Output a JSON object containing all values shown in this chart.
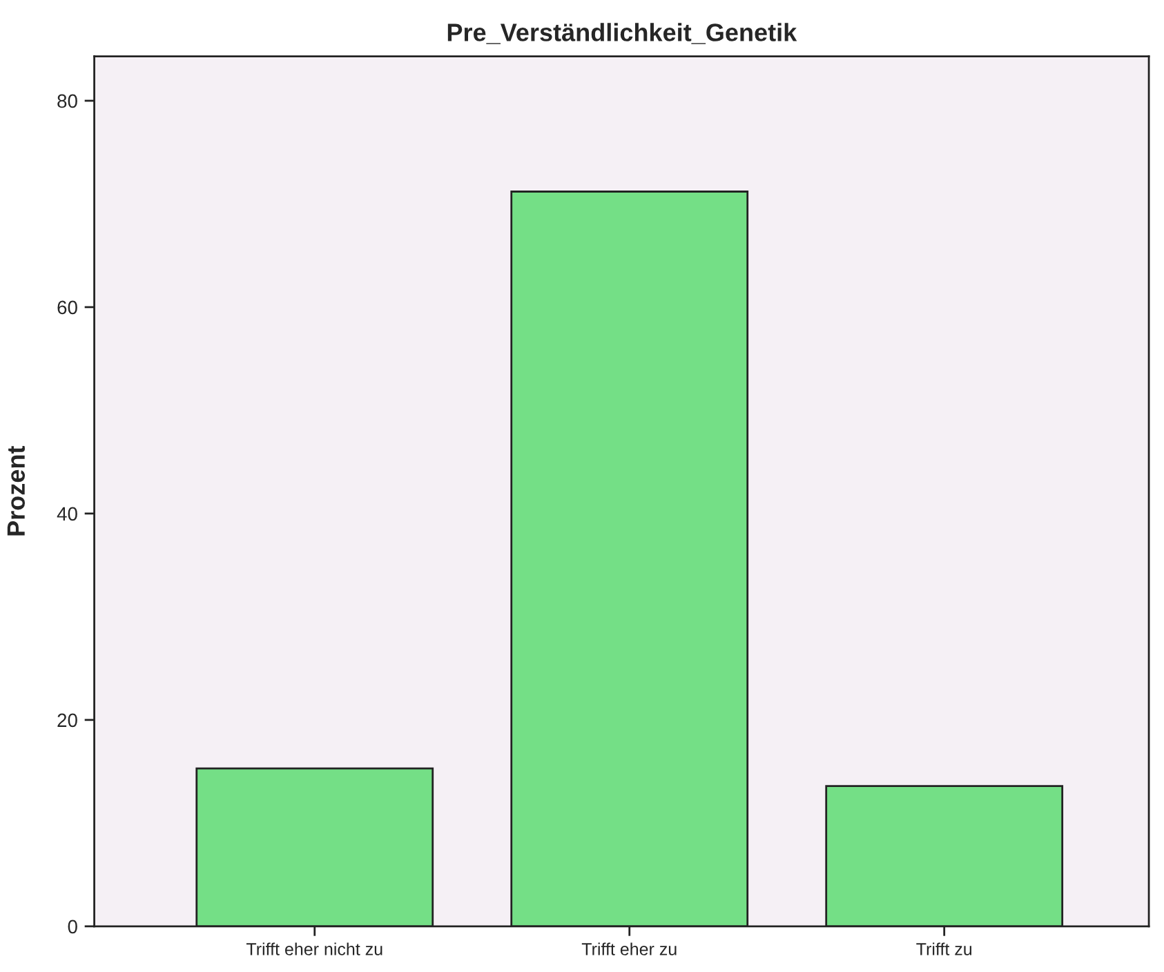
{
  "chart_data": {
    "type": "bar",
    "title": "Pre_Verständlichkeit_Genetik",
    "ylabel": "Prozent",
    "categories": [
      "Trifft eher nicht zu",
      "Trifft eher zu",
      "Trifft zu"
    ],
    "values": [
      15.3,
      71.2,
      13.6
    ],
    "color": "#74df86",
    "ylim": [
      0,
      84.3
    ],
    "yticks": [
      0,
      20,
      40,
      60,
      80
    ],
    "grid": false
  }
}
